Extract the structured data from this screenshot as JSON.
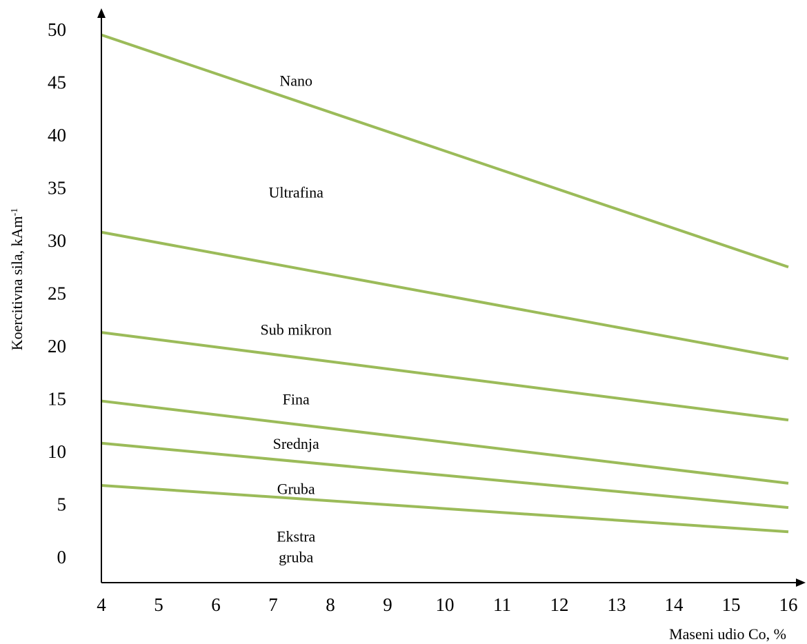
{
  "chart_data": {
    "type": "line",
    "title": "",
    "xlabel": "Maseni udio Co, %",
    "ylabel_main": "Koercitivna sila, kAm",
    "ylabel_sup": "-1",
    "xlim": [
      4,
      16
    ],
    "ylim": [
      0,
      50
    ],
    "x_ticks": [
      "4",
      "5",
      "6",
      "7",
      "8",
      "9",
      "10",
      "11",
      "12",
      "13",
      "14",
      "15",
      "16"
    ],
    "y_ticks": [
      "0",
      "5",
      "10",
      "15",
      "20",
      "25",
      "30",
      "35",
      "40",
      "45",
      "50"
    ],
    "line_color": "#9bbb59",
    "grid": false,
    "legend": "none",
    "series": [
      {
        "values": [
          [
            4,
            49.5
          ],
          [
            16,
            27.5
          ]
        ]
      },
      {
        "values": [
          [
            4,
            30.8
          ],
          [
            16,
            18.8
          ]
        ]
      },
      {
        "values": [
          [
            4,
            21.3
          ],
          [
            16,
            13.0
          ]
        ]
      },
      {
        "values": [
          [
            4,
            14.8
          ],
          [
            16,
            7.0
          ]
        ]
      },
      {
        "values": [
          [
            4,
            10.8
          ],
          [
            16,
            4.7
          ]
        ]
      },
      {
        "values": [
          [
            4,
            6.8
          ],
          [
            16,
            2.4
          ]
        ]
      }
    ],
    "region_labels": [
      {
        "lines": [
          "Nano"
        ],
        "x": 7.4,
        "y": 45.2
      },
      {
        "lines": [
          "Ultrafina"
        ],
        "x": 7.4,
        "y": 34.6
      },
      {
        "lines": [
          "Sub mikron"
        ],
        "x": 7.4,
        "y": 21.6
      },
      {
        "lines": [
          "Fina"
        ],
        "x": 7.4,
        "y": 15.0
      },
      {
        "lines": [
          "Srednja"
        ],
        "x": 7.4,
        "y": 10.8
      },
      {
        "lines": [
          "Gruba"
        ],
        "x": 7.4,
        "y": 6.5
      },
      {
        "lines": [
          "Ekstra",
          "gruba"
        ],
        "x": 7.4,
        "y": 1.0
      }
    ]
  }
}
